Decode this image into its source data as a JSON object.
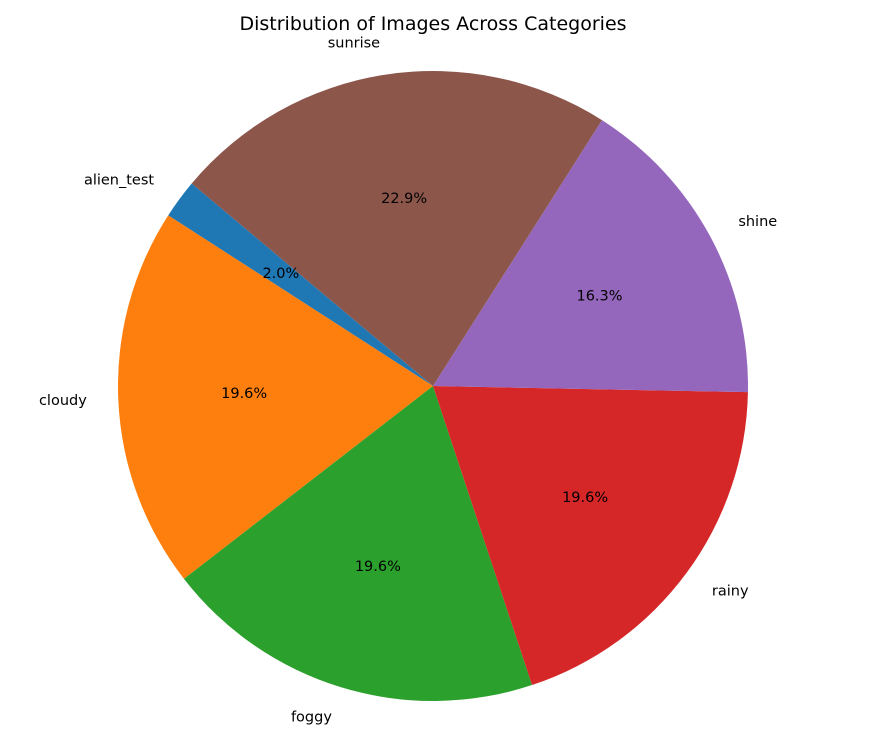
{
  "chart_data": {
    "type": "pie",
    "title": "Distribution of Images Across Categories",
    "categories": [
      "alien_test",
      "cloudy",
      "foggy",
      "rainy",
      "shine",
      "sunrise"
    ],
    "values": [
      2.0,
      19.6,
      19.6,
      19.6,
      16.3,
      22.9
    ],
    "value_labels": [
      "2.0%",
      "19.6%",
      "19.6%",
      "19.6%",
      "16.3%",
      "22.9%"
    ],
    "colors": [
      "#1f77b4",
      "#ff7f0e",
      "#2ca02c",
      "#d62728",
      "#9467bd",
      "#8c564b"
    ],
    "start_angle_deg": 140,
    "direction": "counterclockwise"
  }
}
